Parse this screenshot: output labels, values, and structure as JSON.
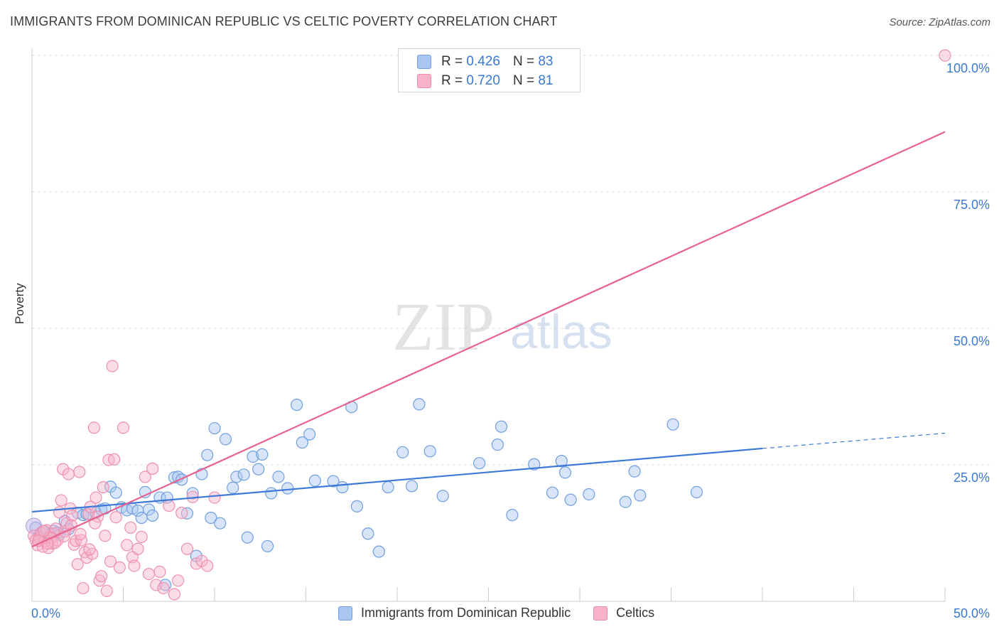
{
  "title": "IMMIGRANTS FROM DOMINICAN REPUBLIC VS CELTIC POVERTY CORRELATION CHART",
  "source": "Source: ZipAtlas.com",
  "watermark": {
    "zip": "ZIP",
    "atlas": "atlas"
  },
  "legend": {
    "blue": {
      "r_label": "R =",
      "r_value": "0.426",
      "n_label": "N =",
      "n_value": "83"
    },
    "pink": {
      "r_label": "R =",
      "r_value": "0.720",
      "n_label": "N =",
      "n_value": "81"
    }
  },
  "bottom_legend": {
    "blue": "Immigrants from Dominican Republic",
    "pink": "Celtics"
  },
  "colors": {
    "blue": "#3b78d8",
    "blue_fill": "#a8c6f0",
    "pink": "#e8628f",
    "pink_fill": "#f6b3c9",
    "axis_text": "#3a78d0",
    "grid": "#dddddd"
  },
  "chart_data": {
    "type": "scatter",
    "title": "IMMIGRANTS FROM DOMINICAN REPUBLIC VS CELTIC POVERTY CORRELATION CHART",
    "xlabel": "",
    "ylabel": "Poverty",
    "xlim": [
      0,
      50
    ],
    "ylim": [
      0,
      100
    ],
    "x_tick_labels": [
      {
        "value": 0,
        "label": "0.0%"
      },
      {
        "value": 50,
        "label": "50.0%"
      }
    ],
    "y_tick_labels": [
      {
        "value": 25,
        "label": "25.0%"
      },
      {
        "value": 50,
        "label": "50.0%"
      },
      {
        "value": 75,
        "label": "75.0%"
      },
      {
        "value": 100,
        "label": "100.0%"
      }
    ],
    "x_minor_ticks": [
      0,
      5,
      10,
      15,
      20,
      25,
      30,
      35,
      40,
      45,
      50
    ],
    "grid": true,
    "series": [
      {
        "name": "Immigrants from Dominican Republic",
        "color": "blue",
        "trend": {
          "x": [
            0,
            40
          ],
          "y": [
            16.4,
            28.0
          ],
          "dashed_to": [
            50,
            30.8
          ]
        },
        "points": [
          [
            0.2,
            13.5
          ],
          [
            0.4,
            12.0
          ],
          [
            0.6,
            12.8
          ],
          [
            0.8,
            11.5
          ],
          [
            1.0,
            12.3
          ],
          [
            1.2,
            12.9
          ],
          [
            1.5,
            12.2
          ],
          [
            1.8,
            14.7
          ],
          [
            2.0,
            13.2
          ],
          [
            2.5,
            16.2
          ],
          [
            2.8,
            15.8
          ],
          [
            3.0,
            16.0
          ],
          [
            3.5,
            16.2
          ],
          [
            3.8,
            16.8
          ],
          [
            4.0,
            17.0
          ],
          [
            4.3,
            21.0
          ],
          [
            4.6,
            19.9
          ],
          [
            4.9,
            17.2
          ],
          [
            5.2,
            16.7
          ],
          [
            5.5,
            17.0
          ],
          [
            5.8,
            16.6
          ],
          [
            6.0,
            15.3
          ],
          [
            6.2,
            20.0
          ],
          [
            6.4,
            16.8
          ],
          [
            6.6,
            15.7
          ],
          [
            7.0,
            19.0
          ],
          [
            7.4,
            19.0
          ],
          [
            7.8,
            22.7
          ],
          [
            8.0,
            22.8
          ],
          [
            8.2,
            22.3
          ],
          [
            8.5,
            16.1
          ],
          [
            8.8,
            19.8
          ],
          [
            9.0,
            8.3
          ],
          [
            9.3,
            23.3
          ],
          [
            9.6,
            26.8
          ],
          [
            9.8,
            15.3
          ],
          [
            10.0,
            31.7
          ],
          [
            10.3,
            14.3
          ],
          [
            10.6,
            29.7
          ],
          [
            11.0,
            20.8
          ],
          [
            11.2,
            22.8
          ],
          [
            11.6,
            23.2
          ],
          [
            11.8,
            11.7
          ],
          [
            12.1,
            26.5
          ],
          [
            12.4,
            24.2
          ],
          [
            12.6,
            26.9
          ],
          [
            12.9,
            10.1
          ],
          [
            13.1,
            19.8
          ],
          [
            13.5,
            22.8
          ],
          [
            14.0,
            20.7
          ],
          [
            14.5,
            36.0
          ],
          [
            14.8,
            29.1
          ],
          [
            15.2,
            30.6
          ],
          [
            15.5,
            22.1
          ],
          [
            16.5,
            22.0
          ],
          [
            17.0,
            20.9
          ],
          [
            17.5,
            35.6
          ],
          [
            17.8,
            17.4
          ],
          [
            18.4,
            12.4
          ],
          [
            19.0,
            9.1
          ],
          [
            19.5,
            20.9
          ],
          [
            20.3,
            27.3
          ],
          [
            20.8,
            21.1
          ],
          [
            21.2,
            36.1
          ],
          [
            21.8,
            27.5
          ],
          [
            22.5,
            19.3
          ],
          [
            24.5,
            25.3
          ],
          [
            25.5,
            28.7
          ],
          [
            25.7,
            32.0
          ],
          [
            26.3,
            15.8
          ],
          [
            27.5,
            25.1
          ],
          [
            28.5,
            19.9
          ],
          [
            29.0,
            25.7
          ],
          [
            29.2,
            23.6
          ],
          [
            29.5,
            18.6
          ],
          [
            30.5,
            19.6
          ],
          [
            32.5,
            18.2
          ],
          [
            33.0,
            23.8
          ],
          [
            33.3,
            19.4
          ],
          [
            35.1,
            32.4
          ],
          [
            36.4,
            20.0
          ],
          [
            7.3,
            3.0
          ],
          [
            1.4,
            12.6
          ]
        ]
      },
      {
        "name": "Celtics",
        "color": "pink",
        "trend": {
          "x": [
            0,
            50
          ],
          "y": [
            10.0,
            86.0
          ]
        },
        "points": [
          [
            0.1,
            12.0
          ],
          [
            0.2,
            11.2
          ],
          [
            0.3,
            10.3
          ],
          [
            0.4,
            11.6
          ],
          [
            0.5,
            12.5
          ],
          [
            0.6,
            10.0
          ],
          [
            0.7,
            11.0
          ],
          [
            0.8,
            13.0
          ],
          [
            0.9,
            9.8
          ],
          [
            1.0,
            11.8
          ],
          [
            1.1,
            10.6
          ],
          [
            1.2,
            12.4
          ],
          [
            1.3,
            13.3
          ],
          [
            1.4,
            11.2
          ],
          [
            1.5,
            16.3
          ],
          [
            1.6,
            18.5
          ],
          [
            1.7,
            24.2
          ],
          [
            1.8,
            12.8
          ],
          [
            1.9,
            14.3
          ],
          [
            2.0,
            23.3
          ],
          [
            2.1,
            17.0
          ],
          [
            2.2,
            15.7
          ],
          [
            2.3,
            10.4
          ],
          [
            2.4,
            11.1
          ],
          [
            2.5,
            6.8
          ],
          [
            2.6,
            23.7
          ],
          [
            2.7,
            11.2
          ],
          [
            2.8,
            2.4
          ],
          [
            2.9,
            9.0
          ],
          [
            3.0,
            8.0
          ],
          [
            3.1,
            16.0
          ],
          [
            3.2,
            17.3
          ],
          [
            3.3,
            8.7
          ],
          [
            3.4,
            31.8
          ],
          [
            3.5,
            19.0
          ],
          [
            3.6,
            15.5
          ],
          [
            3.7,
            3.8
          ],
          [
            3.8,
            4.6
          ],
          [
            3.9,
            20.9
          ],
          [
            4.0,
            12.0
          ],
          [
            4.1,
            1.9
          ],
          [
            4.2,
            25.9
          ],
          [
            4.3,
            7.3
          ],
          [
            4.4,
            43.1
          ],
          [
            4.5,
            26.0
          ],
          [
            4.6,
            15.4
          ],
          [
            4.8,
            6.2
          ],
          [
            5.0,
            31.8
          ],
          [
            5.2,
            10.3
          ],
          [
            5.4,
            13.5
          ],
          [
            5.5,
            8.1
          ],
          [
            5.6,
            6.5
          ],
          [
            5.8,
            9.6
          ],
          [
            6.0,
            11.8
          ],
          [
            6.2,
            22.8
          ],
          [
            6.4,
            5.0
          ],
          [
            6.6,
            24.3
          ],
          [
            6.8,
            3.0
          ],
          [
            7.0,
            5.4
          ],
          [
            7.2,
            2.4
          ],
          [
            7.5,
            17.5
          ],
          [
            7.8,
            1.3
          ],
          [
            8.0,
            3.8
          ],
          [
            8.2,
            16.2
          ],
          [
            8.5,
            9.6
          ],
          [
            8.8,
            19.1
          ],
          [
            9.0,
            6.9
          ],
          [
            9.3,
            7.4
          ],
          [
            9.6,
            6.5
          ],
          [
            10.0,
            19.0
          ],
          [
            1.05,
            11.6
          ],
          [
            0.65,
            12.9
          ],
          [
            0.35,
            11.1
          ],
          [
            1.75,
            11.9
          ],
          [
            2.15,
            13.9
          ],
          [
            2.65,
            12.3
          ],
          [
            3.15,
            9.5
          ],
          [
            3.45,
            14.3
          ],
          [
            1.25,
            10.7
          ],
          [
            0.85,
            10.6
          ],
          [
            50.0,
            100.0
          ]
        ]
      }
    ]
  }
}
